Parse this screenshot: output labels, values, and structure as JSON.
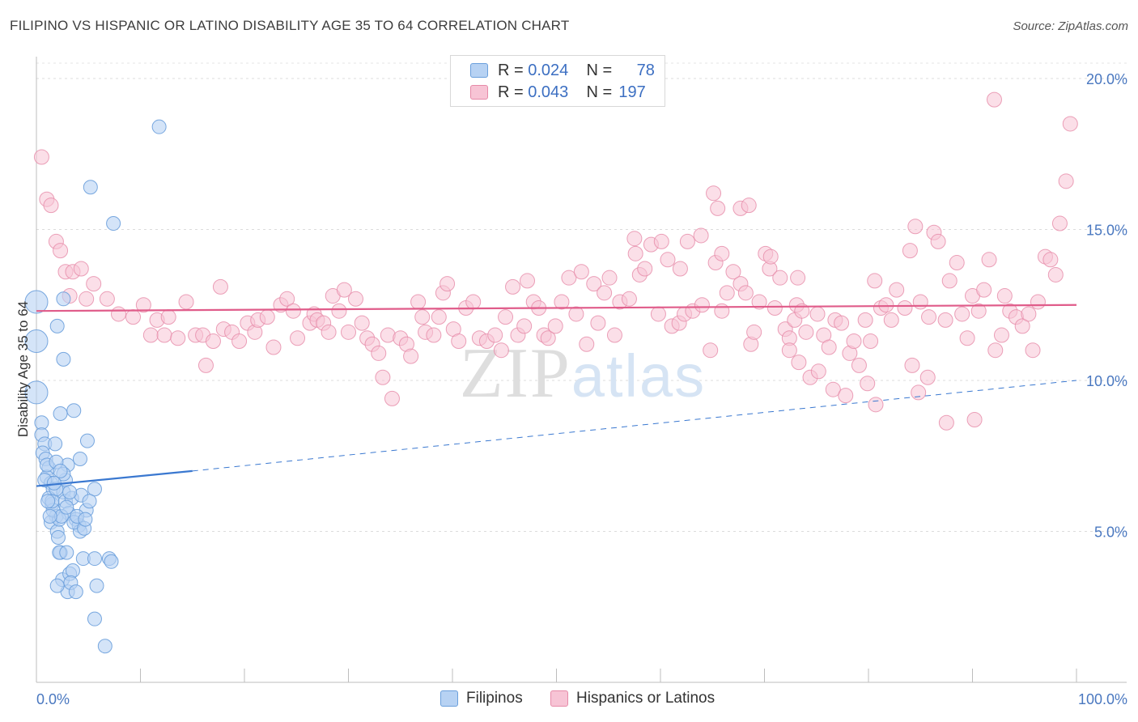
{
  "chart_data": {
    "type": "scatter",
    "title": "FILIPINO VS HISPANIC OR LATINO DISABILITY AGE 35 TO 64 CORRELATION CHART",
    "source": "Source: ZipAtlas.com",
    "xlabel": "",
    "ylabel": "Disability Age 35 to 64",
    "xlim": [
      0,
      100
    ],
    "ylim": [
      0,
      20.5
    ],
    "x_tick_labels": [
      "0.0%",
      "100.0%"
    ],
    "y_ticks": [
      5,
      10,
      15,
      20
    ],
    "y_tick_labels": [
      "5.0%",
      "10.0%",
      "15.0%",
      "20.0%"
    ],
    "watermark": "ZIPatlas",
    "legend": [
      {
        "name": "Filipinos",
        "r_label": "R =",
        "r": "0.024",
        "n_label": "N =",
        "n": "78"
      },
      {
        "name": "Hispanics or Latinos",
        "r_label": "R =",
        "r": "0.043",
        "n_label": "N =",
        "n": "197"
      }
    ],
    "series": [
      {
        "name": "Filipinos",
        "color": "#6a9fdc",
        "fill": "#b7d2f3",
        "trend": {
          "x0": 0,
          "y0": 6.5,
          "x1": 15,
          "y1": 7.0,
          "x_end": 100,
          "y_end": 10.0
        },
        "points": [
          [
            0,
            12.6
          ],
          [
            0,
            11.3
          ],
          [
            0,
            9.6
          ],
          [
            0.5,
            8.6
          ],
          [
            0.5,
            8.2
          ],
          [
            0.8,
            7.9
          ],
          [
            0.6,
            7.6
          ],
          [
            0.9,
            7.4
          ],
          [
            1.2,
            7.1
          ],
          [
            1.0,
            6.8
          ],
          [
            1.4,
            6.6
          ],
          [
            1.6,
            6.4
          ],
          [
            1.2,
            6.1
          ],
          [
            1.5,
            5.9
          ],
          [
            1.9,
            5.5
          ],
          [
            1.4,
            5.3
          ],
          [
            2.0,
            5.0
          ],
          [
            2.1,
            4.8
          ],
          [
            2.3,
            4.3
          ],
          [
            2.5,
            3.4
          ],
          [
            3.0,
            3.0
          ],
          [
            3.2,
            3.6
          ],
          [
            3.5,
            3.7
          ],
          [
            2.6,
            6.3
          ],
          [
            2.8,
            6.0
          ],
          [
            3.1,
            5.6
          ],
          [
            3.8,
            5.4
          ],
          [
            4.1,
            5.2
          ],
          [
            2.2,
            5.4
          ],
          [
            3.0,
            7.2
          ],
          [
            4.2,
            7.4
          ],
          [
            4.9,
            8.0
          ],
          [
            3.6,
            9.0
          ],
          [
            2.3,
            8.9
          ],
          [
            2.6,
            10.7
          ],
          [
            2.0,
            11.8
          ],
          [
            2.6,
            12.7
          ],
          [
            5.2,
            16.4
          ],
          [
            7.4,
            15.2
          ],
          [
            11.8,
            18.4
          ],
          [
            4.5,
            4.1
          ],
          [
            5.6,
            4.1
          ],
          [
            7.0,
            4.1
          ],
          [
            7.2,
            4.0
          ],
          [
            5.8,
            3.2
          ],
          [
            5.6,
            2.1
          ],
          [
            6.6,
            1.2
          ],
          [
            4.2,
            5.0
          ],
          [
            4.8,
            5.7
          ],
          [
            3.4,
            6.1
          ],
          [
            2.8,
            6.7
          ],
          [
            1.6,
            5.7
          ],
          [
            1.9,
            6.4
          ],
          [
            2.2,
            4.3
          ],
          [
            2.9,
            4.3
          ],
          [
            3.3,
            3.3
          ],
          [
            2.0,
            3.2
          ],
          [
            3.8,
            3.0
          ],
          [
            1.0,
            7.2
          ],
          [
            1.9,
            7.3
          ],
          [
            0.8,
            6.7
          ],
          [
            1.5,
            6.0
          ],
          [
            2.4,
            5.5
          ],
          [
            3.6,
            5.3
          ],
          [
            4.6,
            5.1
          ],
          [
            5.6,
            6.4
          ],
          [
            4.3,
            6.2
          ],
          [
            3.2,
            6.3
          ],
          [
            2.6,
            6.9
          ],
          [
            1.8,
            7.9
          ],
          [
            1.1,
            6.0
          ],
          [
            2.9,
            5.8
          ],
          [
            3.9,
            5.5
          ],
          [
            5.1,
            6.0
          ],
          [
            4.7,
            5.4
          ],
          [
            2.3,
            7.0
          ],
          [
            1.7,
            6.6
          ],
          [
            1.3,
            5.5
          ]
        ]
      },
      {
        "name": "Hispanics or Latinos",
        "color": "#e68aa8",
        "fill": "#f7c4d5",
        "trend": {
          "x0": 0,
          "y0": 12.3,
          "x1": 100,
          "y1": 12.5
        },
        "points": [
          [
            0.5,
            17.4
          ],
          [
            1.0,
            16.0
          ],
          [
            1.4,
            15.8
          ],
          [
            1.9,
            14.6
          ],
          [
            2.3,
            14.3
          ],
          [
            2.8,
            13.6
          ],
          [
            3.5,
            13.6
          ],
          [
            4.3,
            13.7
          ],
          [
            5.5,
            13.2
          ],
          [
            3.2,
            12.8
          ],
          [
            4.8,
            12.7
          ],
          [
            6.8,
            12.7
          ],
          [
            7.9,
            12.2
          ],
          [
            9.3,
            12.1
          ],
          [
            10.3,
            12.5
          ],
          [
            11.0,
            11.5
          ],
          [
            11.6,
            12.0
          ],
          [
            12.3,
            11.5
          ],
          [
            12.7,
            12.1
          ],
          [
            13.6,
            11.4
          ],
          [
            14.4,
            12.6
          ],
          [
            15.3,
            11.5
          ],
          [
            16.0,
            11.5
          ],
          [
            16.3,
            10.5
          ],
          [
            17.0,
            11.3
          ],
          [
            17.7,
            13.1
          ],
          [
            18.0,
            11.7
          ],
          [
            18.8,
            11.6
          ],
          [
            19.5,
            11.3
          ],
          [
            20.3,
            11.9
          ],
          [
            21.0,
            11.6
          ],
          [
            21.3,
            12.0
          ],
          [
            22.2,
            12.1
          ],
          [
            22.8,
            11.1
          ],
          [
            23.5,
            12.5
          ],
          [
            24.1,
            12.7
          ],
          [
            24.7,
            12.3
          ],
          [
            25.1,
            11.4
          ],
          [
            26.3,
            11.9
          ],
          [
            26.7,
            12.2
          ],
          [
            27.0,
            12.0
          ],
          [
            27.6,
            11.9
          ],
          [
            28.1,
            11.6
          ],
          [
            28.5,
            12.8
          ],
          [
            29.1,
            12.3
          ],
          [
            29.6,
            13.0
          ],
          [
            30.0,
            11.6
          ],
          [
            30.7,
            12.7
          ],
          [
            31.3,
            11.9
          ],
          [
            31.8,
            11.4
          ],
          [
            32.3,
            11.2
          ],
          [
            32.9,
            10.9
          ],
          [
            33.3,
            10.1
          ],
          [
            33.8,
            11.5
          ],
          [
            34.2,
            9.4
          ],
          [
            35.0,
            11.4
          ],
          [
            35.6,
            11.2
          ],
          [
            36.0,
            10.8
          ],
          [
            36.7,
            12.6
          ],
          [
            37.1,
            12.1
          ],
          [
            37.4,
            11.6
          ],
          [
            38.2,
            11.5
          ],
          [
            38.7,
            12.1
          ],
          [
            39.1,
            12.9
          ],
          [
            39.5,
            13.2
          ],
          [
            40.1,
            11.7
          ],
          [
            40.6,
            11.3
          ],
          [
            41.3,
            12.4
          ],
          [
            42.0,
            12.6
          ],
          [
            42.6,
            11.4
          ],
          [
            43.3,
            11.3
          ],
          [
            44.1,
            11.5
          ],
          [
            44.7,
            11.0
          ],
          [
            45.1,
            12.1
          ],
          [
            45.8,
            13.1
          ],
          [
            46.3,
            11.5
          ],
          [
            46.9,
            11.8
          ],
          [
            47.2,
            13.3
          ],
          [
            47.8,
            12.6
          ],
          [
            48.3,
            12.4
          ],
          [
            48.8,
            11.5
          ],
          [
            49.2,
            11.4
          ],
          [
            49.9,
            11.8
          ],
          [
            50.5,
            12.6
          ],
          [
            51.2,
            13.4
          ],
          [
            51.9,
            12.2
          ],
          [
            52.4,
            13.6
          ],
          [
            52.9,
            11.2
          ],
          [
            53.6,
            13.2
          ],
          [
            54.0,
            11.9
          ],
          [
            54.6,
            12.9
          ],
          [
            55.1,
            13.4
          ],
          [
            55.6,
            11.5
          ],
          [
            56.1,
            12.6
          ],
          [
            57.0,
            12.7
          ],
          [
            57.6,
            14.2
          ],
          [
            58.0,
            13.5
          ],
          [
            58.5,
            13.7
          ],
          [
            59.1,
            14.5
          ],
          [
            59.8,
            12.2
          ],
          [
            60.7,
            14.0
          ],
          [
            61.1,
            11.8
          ],
          [
            61.8,
            11.9
          ],
          [
            62.3,
            12.2
          ],
          [
            62.6,
            14.6
          ],
          [
            63.1,
            12.3
          ],
          [
            64.0,
            12.5
          ],
          [
            64.8,
            11.0
          ],
          [
            65.3,
            13.9
          ],
          [
            65.9,
            12.3
          ],
          [
            66.4,
            12.9
          ],
          [
            67.0,
            13.6
          ],
          [
            67.7,
            13.2
          ],
          [
            68.2,
            12.9
          ],
          [
            68.7,
            11.2
          ],
          [
            69.0,
            11.6
          ],
          [
            69.5,
            12.6
          ],
          [
            70.1,
            14.2
          ],
          [
            70.5,
            13.7
          ],
          [
            71.0,
            12.4
          ],
          [
            71.5,
            13.4
          ],
          [
            72.0,
            11.7
          ],
          [
            72.4,
            11.4
          ],
          [
            72.9,
            12.0
          ],
          [
            73.1,
            12.5
          ],
          [
            73.6,
            12.3
          ],
          [
            74.0,
            11.6
          ],
          [
            74.4,
            10.1
          ],
          [
            75.1,
            12.2
          ],
          [
            75.7,
            11.5
          ],
          [
            76.2,
            11.1
          ],
          [
            76.8,
            12.0
          ],
          [
            77.4,
            11.9
          ],
          [
            78.2,
            10.9
          ],
          [
            78.6,
            11.3
          ],
          [
            79.1,
            10.5
          ],
          [
            79.7,
            12.0
          ],
          [
            80.2,
            11.3
          ],
          [
            80.6,
            13.3
          ],
          [
            81.2,
            12.4
          ],
          [
            81.7,
            12.5
          ],
          [
            82.2,
            12.0
          ],
          [
            82.7,
            13.0
          ],
          [
            83.5,
            12.4
          ],
          [
            84.0,
            14.3
          ],
          [
            84.5,
            15.1
          ],
          [
            85.0,
            12.6
          ],
          [
            85.8,
            12.1
          ],
          [
            86.3,
            14.9
          ],
          [
            86.7,
            14.6
          ],
          [
            87.4,
            12.0
          ],
          [
            87.8,
            13.3
          ],
          [
            88.5,
            13.9
          ],
          [
            89.0,
            12.2
          ],
          [
            89.5,
            11.4
          ],
          [
            90.0,
            12.8
          ],
          [
            90.6,
            12.3
          ],
          [
            91.1,
            13.0
          ],
          [
            91.6,
            14.0
          ],
          [
            92.2,
            11.0
          ],
          [
            92.8,
            11.5
          ],
          [
            93.1,
            12.8
          ],
          [
            93.6,
            12.3
          ],
          [
            94.2,
            12.1
          ],
          [
            94.8,
            11.8
          ],
          [
            95.4,
            12.2
          ],
          [
            95.8,
            11.0
          ],
          [
            96.3,
            12.6
          ],
          [
            97.0,
            14.1
          ],
          [
            97.5,
            14.0
          ],
          [
            98.0,
            13.5
          ],
          [
            98.4,
            15.2
          ],
          [
            99.0,
            16.6
          ],
          [
            99.4,
            18.5
          ],
          [
            92.1,
            19.3
          ],
          [
            65.1,
            16.2
          ],
          [
            65.5,
            15.7
          ],
          [
            67.7,
            15.7
          ],
          [
            72.4,
            11.0
          ],
          [
            73.3,
            10.6
          ],
          [
            75.2,
            10.3
          ],
          [
            76.6,
            9.7
          ],
          [
            77.8,
            9.5
          ],
          [
            79.9,
            9.9
          ],
          [
            80.7,
            9.2
          ],
          [
            84.2,
            10.5
          ],
          [
            84.8,
            9.6
          ],
          [
            85.7,
            10.1
          ],
          [
            87.5,
            8.6
          ],
          [
            90.2,
            8.7
          ],
          [
            57.5,
            14.7
          ],
          [
            60.1,
            14.6
          ],
          [
            61.9,
            13.7
          ],
          [
            63.9,
            14.8
          ],
          [
            65.9,
            14.2
          ],
          [
            68.5,
            15.8
          ],
          [
            70.6,
            14.1
          ],
          [
            73.2,
            13.4
          ]
        ]
      }
    ]
  }
}
